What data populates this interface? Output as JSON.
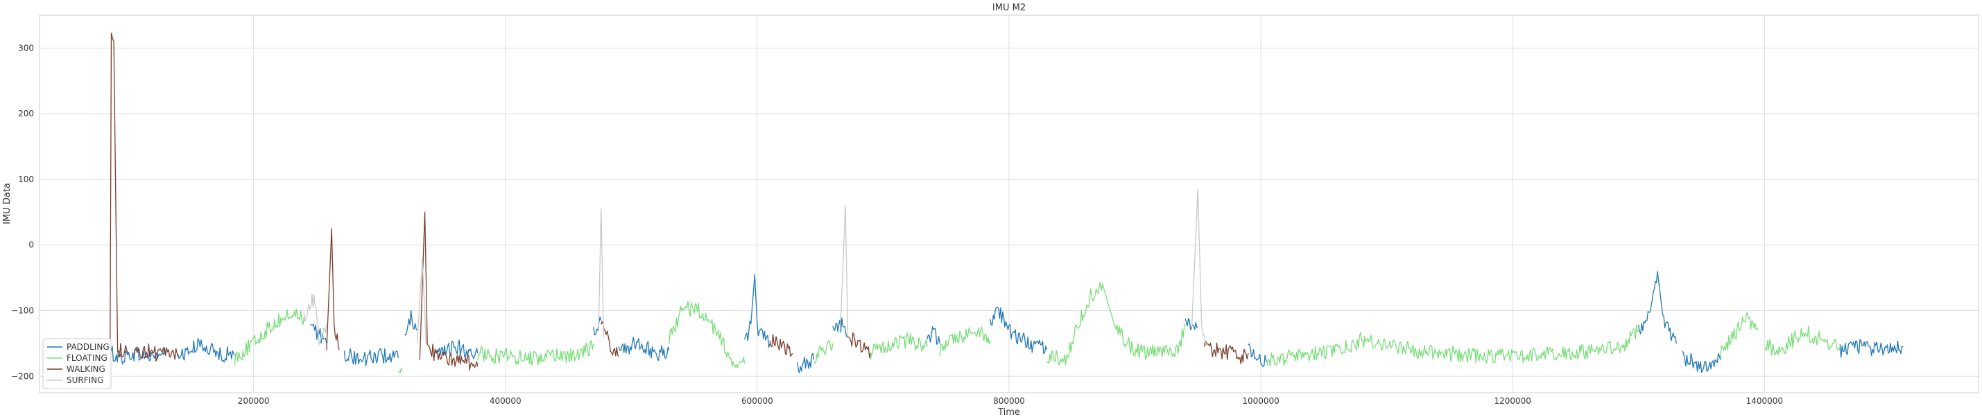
{
  "chart_data": {
    "type": "line",
    "title": "IMU M2",
    "xlabel": "Time",
    "ylabel": "IMU Data",
    "xlim": [
      30000,
      1570000
    ],
    "ylim": [
      -225,
      350
    ],
    "xticks": [
      200000,
      400000,
      600000,
      800000,
      1000000,
      1200000,
      1400000
    ],
    "xtick_labels": [
      "200000",
      "400000",
      "600000",
      "800000",
      "1000000",
      "1200000",
      "1400000"
    ],
    "yticks": [
      -200,
      -100,
      0,
      100,
      200,
      300
    ],
    "ytick_labels": [
      "−200",
      "−100",
      "0",
      "100",
      "200",
      "300"
    ],
    "grid": true,
    "legend_position": "bottom-left",
    "series": [
      {
        "name": "PADDLING",
        "color": "#1f77b4",
        "segments": [
          [
            [
              87000,
              -165
            ],
            [
              95000,
              -172
            ],
            [
              105000,
              -165
            ],
            [
              118000,
              -170
            ],
            [
              130000,
              -165
            ]
          ],
          [
            [
              140000,
              -170
            ],
            [
              150000,
              -160
            ],
            [
              160000,
              -150
            ],
            [
              170000,
              -165
            ],
            [
              185000,
              -168
            ]
          ],
          [
            [
              245000,
              -125
            ],
            [
              252000,
              -135
            ],
            [
              258000,
              -150
            ]
          ],
          [
            [
              272000,
              -165
            ],
            [
              285000,
              -175
            ],
            [
              300000,
              -168
            ],
            [
              315000,
              -172
            ]
          ],
          [
            [
              320000,
              -140
            ],
            [
              325000,
              -110
            ],
            [
              330000,
              -130
            ]
          ],
          [
            [
              345000,
              -170
            ],
            [
              360000,
              -155
            ],
            [
              370000,
              -160
            ],
            [
              378000,
              -165
            ]
          ],
          [
            [
              470000,
              -130
            ],
            [
              476000,
              -115
            ]
          ],
          [
            [
              490000,
              -160
            ],
            [
              505000,
              -150
            ],
            [
              520000,
              -165
            ],
            [
              530000,
              -160
            ]
          ],
          [
            [
              590000,
              -150
            ],
            [
              595000,
              -120
            ],
            [
              598000,
              -45
            ],
            [
              600000,
              -125
            ],
            [
              605000,
              -140
            ],
            [
              610000,
              -150
            ]
          ],
          [
            [
              632000,
              -185
            ],
            [
              640000,
              -180
            ],
            [
              645000,
              -175
            ]
          ],
          [
            [
              660000,
              -130
            ],
            [
              668000,
              -120
            ],
            [
              672000,
              -140
            ]
          ],
          [
            [
              735000,
              -150
            ],
            [
              740000,
              -130
            ],
            [
              745000,
              -150
            ]
          ],
          [
            [
              785000,
              -120
            ],
            [
              790000,
              -95
            ],
            [
              800000,
              -130
            ],
            [
              815000,
              -150
            ],
            [
              830000,
              -160
            ]
          ],
          [
            [
              940000,
              -120
            ],
            [
              950000,
              -125
            ]
          ],
          [
            [
              990000,
              -160
            ],
            [
              995000,
              -170
            ],
            [
              1000000,
              -175
            ],
            [
              1005000,
              -178
            ]
          ],
          [
            [
              1300000,
              -130
            ],
            [
              1305000,
              -115
            ],
            [
              1310000,
              -90
            ],
            [
              1315000,
              -40
            ],
            [
              1320000,
              -120
            ],
            [
              1330000,
              -150
            ]
          ],
          [
            [
              1335000,
              -170
            ],
            [
              1345000,
              -180
            ],
            [
              1355000,
              -185
            ],
            [
              1365000,
              -175
            ]
          ],
          [
            [
              1460000,
              -160
            ],
            [
              1475000,
              -155
            ],
            [
              1490000,
              -158
            ],
            [
              1510000,
              -155
            ]
          ]
        ]
      },
      {
        "name": "FLOATING",
        "color": "#77dd77",
        "segments": [
          [
            [
              185000,
              -172
            ],
            [
              200000,
              -150
            ],
            [
              210000,
              -130
            ],
            [
              220000,
              -115
            ],
            [
              230000,
              -105
            ],
            [
              240000,
              -110
            ]
          ],
          [
            [
              315000,
              -180
            ],
            [
              318000,
              -190
            ]
          ],
          [
            [
              378000,
              -165
            ],
            [
              400000,
              -170
            ],
            [
              420000,
              -172
            ],
            [
              440000,
              -170
            ],
            [
              460000,
              -168
            ],
            [
              470000,
              -150
            ]
          ],
          [
            [
              530000,
              -140
            ],
            [
              540000,
              -100
            ],
            [
              550000,
              -95
            ],
            [
              560000,
              -110
            ],
            [
              570000,
              -140
            ],
            [
              580000,
              -175
            ],
            [
              590000,
              -180
            ]
          ],
          [
            [
              645000,
              -170
            ],
            [
              655000,
              -160
            ],
            [
              660000,
              -150
            ]
          ],
          [
            [
              690000,
              -165
            ],
            [
              705000,
              -150
            ],
            [
              720000,
              -145
            ],
            [
              735000,
              -155
            ]
          ],
          [
            [
              745000,
              -160
            ],
            [
              760000,
              -140
            ],
            [
              775000,
              -130
            ],
            [
              785000,
              -145
            ]
          ],
          [
            [
              830000,
              -170
            ],
            [
              845000,
              -175
            ],
            [
              855000,
              -120
            ],
            [
              865000,
              -75
            ],
            [
              875000,
              -65
            ],
            [
              885000,
              -130
            ],
            [
              900000,
              -160
            ],
            [
              920000,
              -165
            ],
            [
              935000,
              -160
            ],
            [
              940000,
              -120
            ]
          ],
          [
            [
              1005000,
              -175
            ],
            [
              1030000,
              -170
            ],
            [
              1060000,
              -160
            ],
            [
              1080000,
              -145
            ],
            [
              1100000,
              -150
            ],
            [
              1120000,
              -160
            ],
            [
              1150000,
              -165
            ],
            [
              1180000,
              -170
            ],
            [
              1210000,
              -168
            ],
            [
              1240000,
              -165
            ],
            [
              1270000,
              -160
            ],
            [
              1290000,
              -150
            ],
            [
              1300000,
              -130
            ]
          ],
          [
            [
              1365000,
              -165
            ],
            [
              1375000,
              -140
            ],
            [
              1385000,
              -110
            ],
            [
              1395000,
              -130
            ]
          ],
          [
            [
              1400000,
              -150
            ],
            [
              1410000,
              -160
            ],
            [
              1420000,
              -150
            ],
            [
              1430000,
              -130
            ],
            [
              1445000,
              -145
            ],
            [
              1460000,
              -155
            ]
          ]
        ]
      },
      {
        "name": "WALKING",
        "color": "#7b3b2a",
        "segments": [
          [
            [
              86000,
              -170
            ],
            [
              87000,
              325
            ],
            [
              89000,
              310
            ],
            [
              92000,
              -160
            ],
            [
              100000,
              -165
            ]
          ],
          [
            [
              105000,
              -165
            ],
            [
              115000,
              -160
            ],
            [
              125000,
              -168
            ],
            [
              135000,
              -162
            ],
            [
              140000,
              -170
            ]
          ],
          [
            [
              258000,
              -160
            ],
            [
              262000,
              25
            ],
            [
              264000,
              -120
            ],
            [
              268000,
              -160
            ]
          ],
          [
            [
              332000,
              -175
            ],
            [
              336000,
              50
            ],
            [
              338000,
              -150
            ],
            [
              345000,
              -170
            ],
            [
              360000,
              -175
            ],
            [
              370000,
              -180
            ],
            [
              378000,
              -185
            ]
          ],
          [
            [
              476000,
              -120
            ],
            [
              480000,
              -140
            ],
            [
              486000,
              -160
            ],
            [
              490000,
              -170
            ]
          ],
          [
            [
              610000,
              -145
            ],
            [
              620000,
              -155
            ],
            [
              628000,
              -165
            ]
          ],
          [
            [
              672000,
              -140
            ],
            [
              680000,
              -150
            ],
            [
              690000,
              -165
            ]
          ],
          [
            [
              955000,
              -155
            ],
            [
              965000,
              -160
            ],
            [
              975000,
              -165
            ],
            [
              985000,
              -170
            ],
            [
              990000,
              -165
            ]
          ]
        ]
      },
      {
        "name": "SURFING",
        "color": "#c8c8c8",
        "segments": [
          [
            [
              240000,
              -110
            ],
            [
              248000,
              -80
            ],
            [
              252000,
              -140
            ],
            [
              258000,
              -120
            ]
          ],
          [
            [
              330000,
              -150
            ],
            [
              334000,
              -20
            ],
            [
              337000,
              -150
            ]
          ],
          [
            [
              474000,
              -130
            ],
            [
              476000,
              55
            ],
            [
              478000,
              -140
            ]
          ],
          [
            [
              666000,
              -130
            ],
            [
              670000,
              60
            ],
            [
              672000,
              -140
            ]
          ],
          [
            [
              945000,
              -130
            ],
            [
              950000,
              85
            ],
            [
              953000,
              -130
            ],
            [
              957000,
              -150
            ]
          ]
        ]
      }
    ]
  }
}
